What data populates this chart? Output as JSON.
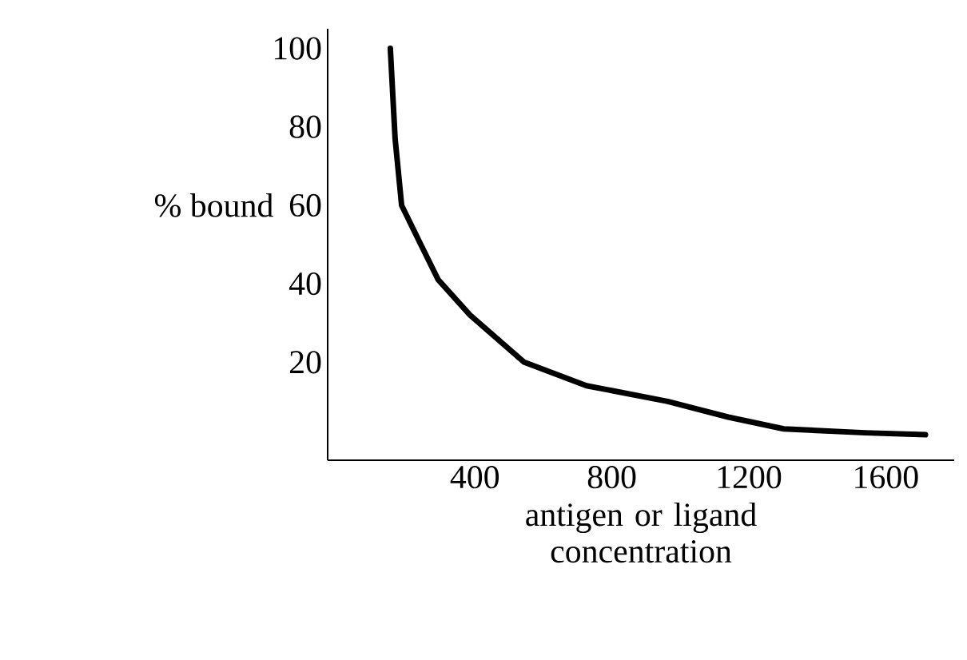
{
  "chart_data": {
    "type": "line",
    "xlabel": "antigen or ligand concentration",
    "ylabel": "% bound",
    "x": [
      153,
      167,
      186,
      242,
      293,
      386,
      544,
      726,
      963,
      1140,
      1302,
      1540,
      1716
    ],
    "series": [
      {
        "color": "#000000",
        "values": [
          100,
          77,
          60,
          50,
          41,
          32,
          20,
          14,
          10,
          6,
          3,
          2,
          1.5
        ]
      }
    ],
    "xlim": [
      -30,
      1800
    ],
    "ylim": [
      -5,
      105
    ],
    "xticks": [
      400,
      800,
      1200,
      1600
    ],
    "yticks": [
      20,
      40,
      60,
      80,
      100
    ],
    "grid": false,
    "marker": "none",
    "line_style": "solid"
  }
}
